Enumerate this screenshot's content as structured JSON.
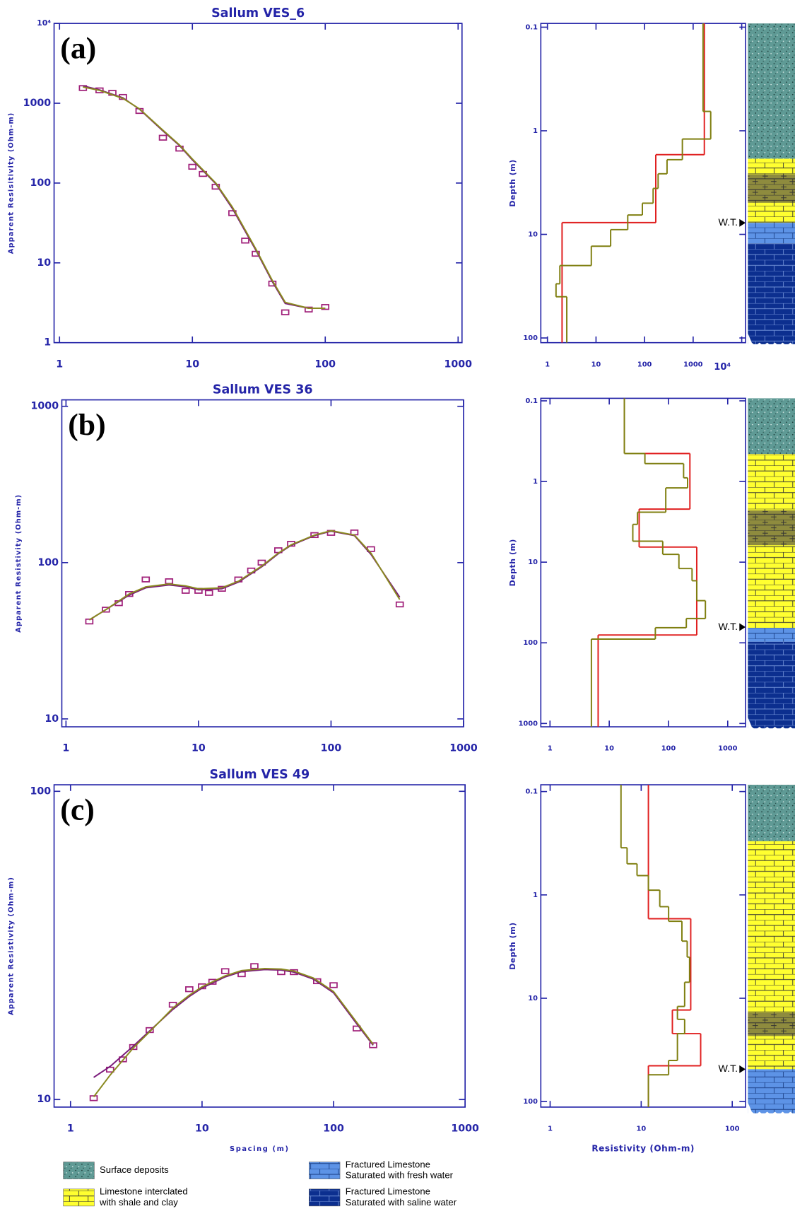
{
  "chart_data": [
    {
      "type": "line",
      "title": "Sallum  VES_6",
      "panel_label": "(a)",
      "ylabel": "Apparent Resisitivity (Ohm-m)",
      "xlog": true,
      "ylog": true,
      "xlim": [
        0.91,
        1070
      ],
      "ylim": [
        1,
        10000
      ],
      "xticks": [
        1,
        10,
        100,
        1000
      ],
      "yticks": [
        1,
        10,
        100,
        1000,
        {
          "value": 10000,
          "label": "10⁴"
        }
      ],
      "series": [
        {
          "style": "markers",
          "color": "#a0207a",
          "x": [
            1.5,
            2,
            2.5,
            3,
            4,
            6,
            8,
            10,
            12,
            15,
            20,
            25,
            30,
            40,
            50,
            75,
            100
          ],
          "values": [
            1550,
            1450,
            1350,
            1200,
            800,
            370,
            270,
            160,
            130,
            90,
            42,
            19,
            13,
            5.5,
            2.4,
            2.6,
            2.8
          ]
        },
        {
          "style": "line",
          "color": "#7a1a7a",
          "x": [
            1.5,
            2,
            3,
            4,
            6,
            8,
            10,
            15,
            20,
            30,
            40,
            50,
            75,
            100
          ],
          "values": [
            1650,
            1470,
            1170,
            840,
            450,
            295,
            195,
            98,
            48,
            14.5,
            5.8,
            3.1,
            2.7,
            2.7
          ]
        },
        {
          "style": "line",
          "color": "#8a8a20",
          "x": [
            1.5,
            2,
            3,
            4,
            6,
            8,
            10,
            15,
            20,
            30,
            40,
            50,
            75,
            100
          ],
          "values": [
            1600,
            1450,
            1150,
            850,
            460,
            300,
            200,
            100,
            50,
            15,
            6,
            3.2,
            2.7,
            2.7
          ]
        }
      ]
    },
    {
      "type": "step",
      "ylabel": "Depth (m)",
      "water_table": "W.T.",
      "xlog": true,
      "ylog": true,
      "y_inverted": true,
      "xlim": [
        0.73,
        12000
      ],
      "ylim": [
        0.092,
        111
      ],
      "xticks": [
        1,
        10,
        100,
        1000,
        {
          "value": 10000,
          "label": "10⁴"
        }
      ],
      "yticks": [
        0.1,
        1,
        10,
        100
      ],
      "series": [
        {
          "color": "#e02020",
          "resistivity": [
            1700,
            170,
            2
          ],
          "depth_bottoms": [
            1.7,
            7.7
          ]
        },
        {
          "color": "#7f7f10",
          "resistivity": [
            1600,
            2300,
            600,
            290,
            190,
            150,
            90,
            45,
            20,
            8,
            1.8,
            1.5,
            2.5
          ],
          "depth_bottoms": [
            0.65,
            1.2,
            1.9,
            2.6,
            3.6,
            5,
            6.5,
            9,
            13,
            20,
            30,
            40
          ]
        }
      ]
    },
    {
      "type": "line",
      "title": "Sallum  VES 36",
      "panel_label": "(b)",
      "ylabel": "Apparent Resistivity (Ohm-m)",
      "xlog": true,
      "ylog": true,
      "xlim": [
        0.93,
        1000
      ],
      "ylim": [
        8.9,
        1100
      ],
      "xticks": [
        1,
        10,
        100,
        1000
      ],
      "yticks": [
        10,
        100,
        1000
      ],
      "series": [
        {
          "style": "markers",
          "color": "#a0207a",
          "x": [
            1.5,
            2,
            2.5,
            3,
            4,
            6,
            8,
            10,
            12,
            15,
            20,
            25,
            30,
            40,
            50,
            75,
            100,
            150,
            200,
            330
          ],
          "values": [
            42,
            50,
            55,
            63,
            78,
            76,
            66,
            66,
            64,
            68,
            78,
            89,
            100,
            120,
            132,
            150,
            155,
            156,
            122,
            54
          ]
        },
        {
          "style": "line",
          "color": "#7a1a7a",
          "x": [
            1.5,
            2,
            3,
            4,
            6,
            8,
            10,
            15,
            20,
            30,
            40,
            50,
            75,
            100,
            150,
            200,
            330
          ],
          "values": [
            43,
            50,
            62,
            69,
            72,
            70,
            67,
            68,
            75,
            94,
            114,
            129,
            149,
            159,
            149,
            113,
            60
          ]
        },
        {
          "style": "line",
          "color": "#8a8a20",
          "x": [
            1.5,
            2,
            3,
            4,
            6,
            8,
            10,
            15,
            20,
            30,
            40,
            50,
            75,
            100,
            150,
            200,
            330
          ],
          "values": [
            43,
            50,
            63,
            70,
            73,
            71,
            68,
            69,
            76,
            95,
            115,
            130,
            150,
            160,
            150,
            115,
            58
          ]
        }
      ]
    },
    {
      "type": "step",
      "ylabel": "Depth (m)",
      "water_table": "W.T.",
      "xlog": true,
      "ylog": true,
      "y_inverted": true,
      "xlim": [
        0.7,
        2000
      ],
      "ylim": [
        0.093,
        1100
      ],
      "xticks": [
        1,
        10,
        100,
        1000
      ],
      "yticks": [
        0.1,
        1,
        10,
        100,
        1000
      ],
      "series": [
        {
          "color": "#e02020",
          "resistivity": [
            18,
            230,
            32,
            300,
            6.5
          ],
          "depth_bottoms": [
            0.45,
            2.2,
            6.5,
            80
          ]
        },
        {
          "color": "#7f7f10",
          "resistivity": [
            18,
            40,
            180,
            210,
            90,
            30,
            25,
            80,
            150,
            250,
            300,
            420,
            200,
            60,
            5
          ],
          "depth_bottoms": [
            0.45,
            0.6,
            0.9,
            1.2,
            2.4,
            3.4,
            5.5,
            8,
            12,
            17,
            30,
            50,
            65,
            90
          ]
        }
      ]
    },
    {
      "type": "line",
      "title": "Sallum  VES 49",
      "panel_label": "(c)",
      "ylabel": "Apparent Resistivity (Ohm-m)",
      "xlabel": "Spacing (m)",
      "xlog": true,
      "ylog": true,
      "xlim": [
        0.75,
        1000
      ],
      "ylim": [
        9.45,
        105
      ],
      "xticks": [
        1,
        10,
        100,
        1000
      ],
      "yticks": [
        10,
        100
      ],
      "series": [
        {
          "style": "markers",
          "color": "#a0207a",
          "x": [
            1.5,
            2,
            2.5,
            3,
            4,
            6,
            8,
            10,
            12,
            15,
            20,
            25,
            40,
            50,
            75,
            100,
            150,
            200
          ],
          "values": [
            10.1,
            12.5,
            13.5,
            14.8,
            16.8,
            20.3,
            22.8,
            23.3,
            24.1,
            26.1,
            25.5,
            27.1,
            25.9,
            25.9,
            24.2,
            23.5,
            17,
            15
          ]
        },
        {
          "style": "line",
          "color": "#7a1a7a",
          "x": [
            1.5,
            2,
            3,
            4,
            6,
            8,
            10,
            15,
            20,
            30,
            40,
            50,
            70,
            100,
            150,
            200
          ],
          "values": [
            11.8,
            12.8,
            14.9,
            16.7,
            19.6,
            21.6,
            23,
            25,
            26,
            26.4,
            26.3,
            25.9,
            24.6,
            22.2,
            17.6,
            15
          ]
        },
        {
          "style": "line",
          "color": "#8a8a20",
          "x": [
            1.5,
            2,
            3,
            4,
            6,
            8,
            10,
            15,
            20,
            30,
            40,
            50,
            70,
            100,
            150,
            200
          ],
          "values": [
            10.2,
            12,
            14.7,
            16.6,
            19.8,
            21.8,
            23.2,
            25.2,
            26.2,
            26.6,
            26.5,
            26.1,
            24.8,
            22.4,
            17.8,
            15.1
          ]
        }
      ]
    },
    {
      "type": "step",
      "ylabel": "Depth (m)",
      "xlabel": "Resistivity (Ohm-m)",
      "water_table": "W.T.",
      "xlog": true,
      "ylog": true,
      "y_inverted": true,
      "xlim": [
        0.79,
        140
      ],
      "ylim": [
        0.086,
        113
      ],
      "xticks": [
        1,
        10,
        100
      ],
      "yticks": [
        0.1,
        1,
        10,
        100
      ],
      "series": [
        {
          "color": "#e02020",
          "resistivity": [
            12,
            35,
            22,
            45,
            12
          ],
          "depth_bottoms": [
            1.7,
            13,
            22,
            45
          ]
        },
        {
          "color": "#7f7f10",
          "resistivity": [
            6,
            7,
            9,
            12,
            16,
            20,
            28,
            32,
            34,
            30,
            25,
            30,
            25,
            20,
            12
          ],
          "depth_bottoms": [
            0.35,
            0.5,
            0.65,
            0.9,
            1.3,
            1.8,
            2.8,
            4,
            7,
            12,
            16,
            22,
            40,
            55
          ]
        }
      ]
    }
  ],
  "legend": [
    {
      "lines": [
        "Surface deposits"
      ]
    },
    {
      "lines": [
        "Limestone interclated",
        "with shale and clay"
      ]
    },
    {
      "lines": [
        "Fractured Limestone",
        "Saturated with fresh water"
      ]
    },
    {
      "lines": [
        "Fractured Limestone",
        "Saturated with saline water"
      ]
    }
  ]
}
